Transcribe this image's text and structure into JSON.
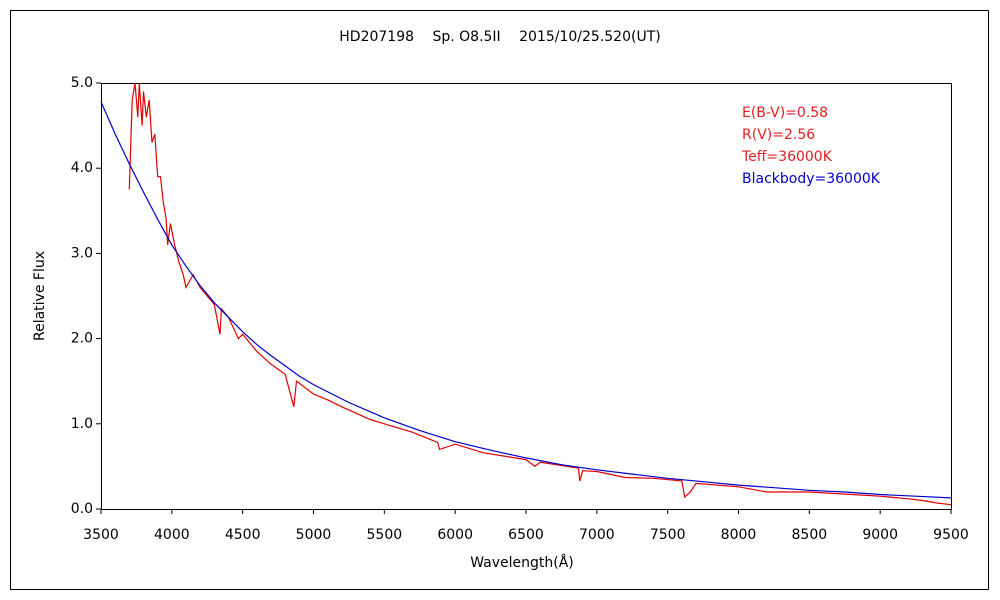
{
  "chart_data": {
    "type": "line",
    "title": "HD207198　 Sp. O8.5II　 2015/10/25.520(UT)",
    "x_label": "Wavelength(Å)",
    "y_label": "Relative Flux",
    "xlim": [
      3500,
      9500
    ],
    "ylim": [
      0,
      5
    ],
    "xticks": [
      3500,
      4000,
      4500,
      5000,
      5500,
      6000,
      6500,
      7000,
      7500,
      8000,
      8500,
      9000,
      9500
    ],
    "yticks": [
      {
        "value": 0,
        "label": "0.0"
      },
      {
        "value": 1,
        "label": "1.0"
      },
      {
        "value": 2,
        "label": "2.0"
      },
      {
        "value": 3,
        "label": "3.0"
      },
      {
        "value": 4,
        "label": "4.0"
      },
      {
        "value": 5,
        "label": "5.0"
      }
    ],
    "annotations": [
      {
        "text": "E(B-V)=0.58",
        "color": "#e02020"
      },
      {
        "text": "R(V)=2.56",
        "color": "#e02020"
      },
      {
        "text": "Teff=36000K",
        "color": "#e02020"
      }
    ],
    "series": [
      {
        "color": "#e00000",
        "x": [
          3700,
          3710,
          3720,
          3740,
          3760,
          3770,
          3790,
          3800,
          3820,
          3840,
          3860,
          3880,
          3900,
          3920,
          3940,
          3960,
          3970,
          3990,
          4020,
          4050,
          4080,
          4100,
          4150,
          4200,
          4300,
          4340,
          4350,
          4400,
          4470,
          4500,
          4600,
          4700,
          4800,
          4861,
          4880,
          5000,
          5100,
          5200,
          5400,
          5500,
          5700,
          5876,
          5890,
          6000,
          6200,
          6500,
          6563,
          6600,
          6870,
          6880,
          6900,
          7000,
          7200,
          7400,
          7600,
          7620,
          7660,
          7700,
          8000,
          8200,
          8500,
          8800,
          9000,
          9200,
          9300,
          9400,
          9500
        ],
        "values": [
          3.75,
          4.3,
          4.8,
          5.0,
          4.6,
          5.0,
          4.5,
          4.9,
          4.6,
          4.8,
          4.3,
          4.4,
          3.9,
          3.9,
          3.6,
          3.4,
          3.1,
          3.35,
          3.1,
          2.9,
          2.75,
          2.6,
          2.75,
          2.6,
          2.4,
          2.05,
          2.35,
          2.25,
          2.0,
          2.05,
          1.85,
          1.7,
          1.58,
          1.2,
          1.5,
          1.35,
          1.28,
          1.2,
          1.05,
          1.0,
          0.9,
          0.78,
          0.7,
          0.76,
          0.66,
          0.58,
          0.5,
          0.55,
          0.48,
          0.33,
          0.45,
          0.44,
          0.37,
          0.36,
          0.33,
          0.14,
          0.2,
          0.3,
          0.26,
          0.2,
          0.2,
          0.17,
          0.15,
          0.12,
          0.1,
          0.07,
          0.05
        ]
      },
      {
        "name": "Blackbody=36000K",
        "color": "#0000cc",
        "x": [
          3500,
          3600,
          3700,
          3800,
          3900,
          4000,
          4100,
          4200,
          4300,
          4400,
          4500,
          4600,
          4700,
          4800,
          4900,
          5000,
          5250,
          5500,
          5750,
          6000,
          6250,
          6500,
          6750,
          7000,
          7250,
          7500,
          7750,
          8000,
          8250,
          8500,
          8750,
          9000,
          9250,
          9500
        ],
        "values": [
          4.78,
          4.4,
          4.05,
          3.72,
          3.4,
          3.1,
          2.85,
          2.62,
          2.42,
          2.25,
          2.08,
          1.93,
          1.8,
          1.68,
          1.56,
          1.46,
          1.25,
          1.07,
          0.92,
          0.79,
          0.69,
          0.6,
          0.52,
          0.46,
          0.41,
          0.36,
          0.32,
          0.28,
          0.25,
          0.22,
          0.2,
          0.17,
          0.15,
          0.13
        ]
      }
    ]
  }
}
